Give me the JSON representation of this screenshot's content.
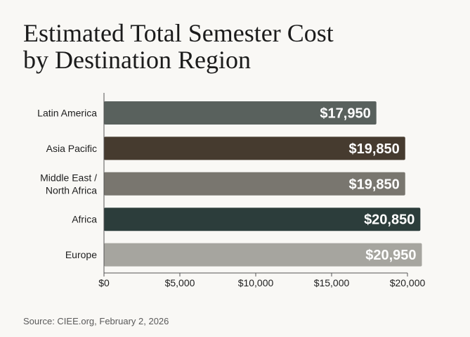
{
  "chart_data": {
    "type": "bar",
    "orientation": "horizontal",
    "title_lines": [
      "Estimated Total Semester Cost",
      "by Destination Region"
    ],
    "categories": [
      "Latin America",
      "Asia Pacific",
      "Middle East / North Africa",
      "Africa",
      "Europe"
    ],
    "category_lines": [
      [
        "Latin America"
      ],
      [
        "Asia Pacific"
      ],
      [
        "Middle East /",
        "North Africa"
      ],
      [
        "Africa"
      ],
      [
        "Europe"
      ]
    ],
    "values": [
      17950,
      19850,
      19850,
      20850,
      20950
    ],
    "value_labels": [
      "$17,950",
      "$19,850",
      "$19,850",
      "$20,850",
      "$20,950"
    ],
    "bar_colors": [
      "#59615d",
      "#463b2f",
      "#79766f",
      "#2c3d3b",
      "#a6a59f"
    ],
    "xlim": [
      0,
      20000
    ],
    "x_ticks": [
      0,
      5000,
      10000,
      15000,
      20000
    ],
    "x_tick_labels": [
      "$0",
      "$5,000",
      "$10,000",
      "$15,000",
      "$20,000"
    ],
    "xlabel": "",
    "ylabel": "",
    "grid": false,
    "legend": "none"
  },
  "source": "Source: CIEE.org, February 2, 2026"
}
